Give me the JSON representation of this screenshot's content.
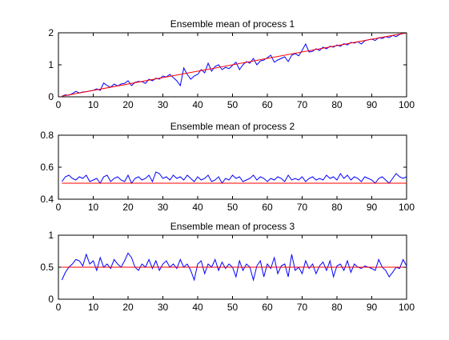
{
  "chart_data": [
    {
      "type": "line",
      "title": "Ensemble mean of process 1",
      "xlabel": "",
      "ylabel": "",
      "xlim": [
        0,
        100
      ],
      "ylim": [
        0,
        2
      ],
      "xticks": [
        0,
        10,
        20,
        30,
        40,
        50,
        60,
        70,
        80,
        90,
        100
      ],
      "yticks": [
        0,
        1,
        2
      ],
      "grid": false,
      "x": [
        1,
        2,
        3,
        4,
        5,
        6,
        7,
        8,
        9,
        10,
        11,
        12,
        13,
        14,
        15,
        16,
        17,
        18,
        19,
        20,
        21,
        22,
        23,
        24,
        25,
        26,
        27,
        28,
        29,
        30,
        31,
        32,
        33,
        34,
        35,
        36,
        37,
        38,
        39,
        40,
        41,
        42,
        43,
        44,
        45,
        46,
        47,
        48,
        49,
        50,
        51,
        52,
        53,
        54,
        55,
        56,
        57,
        58,
        59,
        60,
        61,
        62,
        63,
        64,
        65,
        66,
        67,
        68,
        69,
        70,
        71,
        72,
        73,
        74,
        75,
        76,
        77,
        78,
        79,
        80,
        81,
        82,
        83,
        84,
        85,
        86,
        87,
        88,
        89,
        90,
        91,
        92,
        93,
        94,
        95,
        96,
        97,
        98,
        99,
        100
      ],
      "series": [
        {
          "color": "#0000ff",
          "values": [
            0.02,
            0.06,
            0.05,
            0.1,
            0.17,
            0.12,
            0.15,
            0.16,
            0.18,
            0.2,
            0.25,
            0.2,
            0.43,
            0.35,
            0.3,
            0.4,
            0.34,
            0.4,
            0.42,
            0.5,
            0.35,
            0.45,
            0.48,
            0.47,
            0.42,
            0.55,
            0.5,
            0.58,
            0.55,
            0.65,
            0.62,
            0.7,
            0.6,
            0.5,
            0.35,
            0.9,
            0.7,
            0.55,
            0.65,
            0.7,
            0.85,
            0.75,
            1.05,
            0.8,
            0.95,
            1.0,
            0.85,
            0.92,
            0.88,
            0.98,
            1.08,
            0.85,
            1.0,
            1.1,
            1.05,
            1.2,
            1.0,
            1.12,
            1.15,
            1.22,
            1.3,
            1.08,
            1.15,
            1.2,
            1.25,
            1.1,
            1.3,
            1.35,
            1.28,
            1.45,
            1.65,
            1.4,
            1.42,
            1.5,
            1.45,
            1.55,
            1.5,
            1.58,
            1.55,
            1.62,
            1.58,
            1.66,
            1.62,
            1.7,
            1.68,
            1.72,
            1.65,
            1.75,
            1.78,
            1.8,
            1.76,
            1.85,
            1.82,
            1.88,
            1.85,
            1.92,
            1.88,
            1.95,
            1.98,
            2.0
          ]
        },
        {
          "color": "#ff0000",
          "x": [
            1,
            100
          ],
          "values": [
            0.02,
            2.0
          ]
        }
      ]
    },
    {
      "type": "line",
      "title": "Ensemble mean of process 2",
      "xlabel": "",
      "ylabel": "",
      "xlim": [
        0,
        100
      ],
      "ylim": [
        0.4,
        0.8
      ],
      "xticks": [
        0,
        10,
        20,
        30,
        40,
        50,
        60,
        70,
        80,
        90,
        100
      ],
      "yticks": [
        0.4,
        0.6,
        0.8
      ],
      "grid": false,
      "x": [
        1,
        2,
        3,
        4,
        5,
        6,
        7,
        8,
        9,
        10,
        11,
        12,
        13,
        14,
        15,
        16,
        17,
        18,
        19,
        20,
        21,
        22,
        23,
        24,
        25,
        26,
        27,
        28,
        29,
        30,
        31,
        32,
        33,
        34,
        35,
        36,
        37,
        38,
        39,
        40,
        41,
        42,
        43,
        44,
        45,
        46,
        47,
        48,
        49,
        50,
        51,
        52,
        53,
        54,
        55,
        56,
        57,
        58,
        59,
        60,
        61,
        62,
        63,
        64,
        65,
        66,
        67,
        68,
        69,
        70,
        71,
        72,
        73,
        74,
        75,
        76,
        77,
        78,
        79,
        80,
        81,
        82,
        83,
        84,
        85,
        86,
        87,
        88,
        89,
        90,
        91,
        92,
        93,
        94,
        95,
        96,
        97,
        98,
        99,
        100
      ],
      "series": [
        {
          "color": "#0000ff",
          "values": [
            0.51,
            0.54,
            0.55,
            0.53,
            0.52,
            0.54,
            0.53,
            0.55,
            0.51,
            0.52,
            0.53,
            0.5,
            0.54,
            0.55,
            0.51,
            0.53,
            0.54,
            0.52,
            0.51,
            0.55,
            0.5,
            0.53,
            0.54,
            0.52,
            0.53,
            0.55,
            0.51,
            0.57,
            0.56,
            0.53,
            0.54,
            0.52,
            0.55,
            0.53,
            0.54,
            0.52,
            0.55,
            0.53,
            0.51,
            0.54,
            0.52,
            0.53,
            0.55,
            0.51,
            0.52,
            0.54,
            0.5,
            0.53,
            0.52,
            0.55,
            0.53,
            0.54,
            0.51,
            0.52,
            0.53,
            0.55,
            0.52,
            0.54,
            0.53,
            0.51,
            0.53,
            0.52,
            0.54,
            0.53,
            0.51,
            0.55,
            0.52,
            0.53,
            0.52,
            0.54,
            0.51,
            0.53,
            0.54,
            0.52,
            0.53,
            0.52,
            0.55,
            0.53,
            0.54,
            0.52,
            0.56,
            0.53,
            0.55,
            0.52,
            0.54,
            0.53,
            0.51,
            0.54,
            0.53,
            0.52,
            0.5,
            0.53,
            0.54,
            0.52,
            0.5,
            0.53,
            0.56,
            0.54,
            0.53,
            0.54
          ]
        },
        {
          "color": "#ff0000",
          "x": [
            1,
            100
          ],
          "values": [
            0.5,
            0.5
          ]
        }
      ]
    },
    {
      "type": "line",
      "title": "Ensemble mean of process 3",
      "xlabel": "",
      "ylabel": "",
      "xlim": [
        0,
        100
      ],
      "ylim": [
        0,
        1
      ],
      "xticks": [
        0,
        10,
        20,
        30,
        40,
        50,
        60,
        70,
        80,
        90,
        100
      ],
      "yticks": [
        0,
        0.5,
        1
      ],
      "grid": false,
      "x": [
        1,
        2,
        3,
        4,
        5,
        6,
        7,
        8,
        9,
        10,
        11,
        12,
        13,
        14,
        15,
        16,
        17,
        18,
        19,
        20,
        21,
        22,
        23,
        24,
        25,
        26,
        27,
        28,
        29,
        30,
        31,
        32,
        33,
        34,
        35,
        36,
        37,
        38,
        39,
        40,
        41,
        42,
        43,
        44,
        45,
        46,
        47,
        48,
        49,
        50,
        51,
        52,
        53,
        54,
        55,
        56,
        57,
        58,
        59,
        60,
        61,
        62,
        63,
        64,
        65,
        66,
        67,
        68,
        69,
        70,
        71,
        72,
        73,
        74,
        75,
        76,
        77,
        78,
        79,
        80,
        81,
        82,
        83,
        84,
        85,
        86,
        87,
        88,
        89,
        90,
        91,
        92,
        93,
        94,
        95,
        96,
        97,
        98,
        99,
        100
      ],
      "series": [
        {
          "color": "#0000ff",
          "values": [
            0.3,
            0.42,
            0.5,
            0.55,
            0.62,
            0.6,
            0.52,
            0.7,
            0.55,
            0.6,
            0.45,
            0.65,
            0.5,
            0.55,
            0.48,
            0.62,
            0.55,
            0.5,
            0.6,
            0.72,
            0.65,
            0.5,
            0.45,
            0.55,
            0.5,
            0.62,
            0.48,
            0.6,
            0.45,
            0.55,
            0.6,
            0.5,
            0.55,
            0.48,
            0.62,
            0.5,
            0.55,
            0.45,
            0.3,
            0.55,
            0.6,
            0.4,
            0.55,
            0.5,
            0.62,
            0.45,
            0.58,
            0.48,
            0.55,
            0.5,
            0.35,
            0.6,
            0.45,
            0.55,
            0.5,
            0.3,
            0.52,
            0.6,
            0.35,
            0.55,
            0.48,
            0.65,
            0.4,
            0.52,
            0.55,
            0.35,
            0.7,
            0.45,
            0.5,
            0.4,
            0.6,
            0.48,
            0.55,
            0.4,
            0.52,
            0.58,
            0.45,
            0.6,
            0.35,
            0.52,
            0.55,
            0.45,
            0.6,
            0.42,
            0.55,
            0.5,
            0.48,
            0.52,
            0.5,
            0.48,
            0.45,
            0.62,
            0.5,
            0.45,
            0.35,
            0.42,
            0.5,
            0.48,
            0.62,
            0.52
          ]
        },
        {
          "color": "#ff0000",
          "x": [
            1,
            100
          ],
          "values": [
            0.5,
            0.5
          ]
        }
      ]
    }
  ]
}
